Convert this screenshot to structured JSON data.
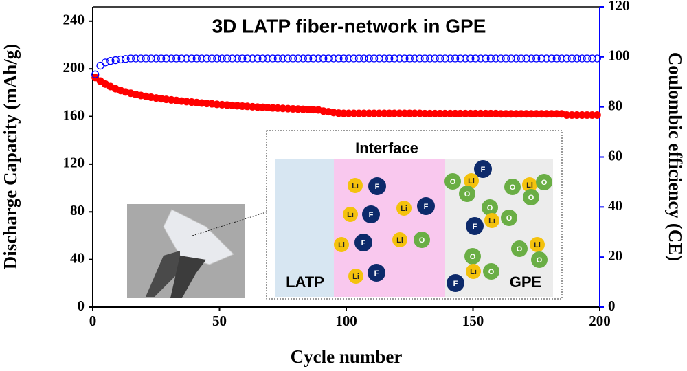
{
  "chart_data": {
    "type": "scatter",
    "title": "3D LATP fiber-network in GPE",
    "x_label": "Cycle number",
    "y_label": "Discharge Capacity (mAh/g)",
    "y2_label": "Coulombic efficiency (CE)",
    "x": [
      1,
      3,
      5,
      7,
      9,
      11,
      13,
      15,
      17,
      19,
      21,
      23,
      25,
      27,
      29,
      31,
      33,
      35,
      37,
      39,
      41,
      43,
      45,
      47,
      49,
      51,
      53,
      55,
      57,
      59,
      61,
      63,
      65,
      67,
      69,
      71,
      73,
      75,
      77,
      79,
      81,
      83,
      85,
      87,
      89,
      91,
      93,
      95,
      97,
      99,
      101,
      103,
      105,
      107,
      109,
      111,
      113,
      115,
      117,
      119,
      121,
      123,
      125,
      127,
      129,
      131,
      133,
      135,
      137,
      139,
      141,
      143,
      145,
      147,
      149,
      151,
      153,
      155,
      157,
      159,
      161,
      163,
      165,
      167,
      169,
      171,
      173,
      175,
      177,
      179,
      181,
      183,
      185,
      187,
      189,
      191,
      193,
      195,
      197,
      199
    ],
    "series": [
      {
        "name": "Discharge Capacity",
        "color": "#ff0000",
        "marker": "filled",
        "axis": "y",
        "values": [
          192.7,
          189.7,
          187.2,
          185.1,
          183.3,
          181.8,
          180.6,
          179.5,
          178.5,
          177.6,
          176.9,
          176.2,
          175.5,
          174.9,
          174.4,
          173.9,
          173.4,
          172.9,
          172.5,
          172.1,
          171.7,
          171.3,
          170.9,
          170.6,
          170.2,
          169.9,
          169.6,
          169.3,
          169.0,
          168.7,
          168.5,
          168.2,
          167.9,
          167.7,
          167.5,
          167.2,
          167.0,
          166.8,
          166.6,
          166.4,
          166.2,
          166.0,
          165.8,
          165.7,
          165.5,
          164.5,
          164.0,
          163.3,
          162.8,
          162.6,
          162.6,
          162.6,
          162.6,
          162.6,
          162.6,
          162.6,
          162.6,
          162.6,
          162.6,
          162.6,
          162.6,
          162.6,
          162.6,
          162.6,
          162.6,
          162.4,
          162.4,
          162.4,
          162.4,
          162.4,
          162.4,
          162.4,
          162.4,
          162.4,
          162.4,
          162.4,
          162.4,
          162.4,
          162.4,
          162.4,
          162.2,
          162.2,
          162.2,
          162.2,
          162.2,
          162.2,
          162.2,
          162.2,
          162.2,
          162.2,
          162.2,
          162.2,
          162.2,
          161.2,
          161.2,
          161.2,
          161.2,
          161.2,
          161.2,
          161.2
        ]
      },
      {
        "name": "Coulombic efficiency",
        "color": "#0000ff",
        "marker": "open",
        "axis": "y2",
        "values": [
          93.0,
          96.5,
          97.8,
          98.4,
          98.7,
          99.0,
          99.2,
          99.4,
          99.4,
          99.4,
          99.4,
          99.4,
          99.4,
          99.4,
          99.4,
          99.4,
          99.4,
          99.4,
          99.4,
          99.4,
          99.4,
          99.4,
          99.4,
          99.4,
          99.4,
          99.4,
          99.4,
          99.4,
          99.4,
          99.4,
          99.4,
          99.4,
          99.4,
          99.4,
          99.4,
          99.4,
          99.4,
          99.4,
          99.4,
          99.4,
          99.4,
          99.4,
          99.4,
          99.4,
          99.4,
          99.4,
          99.4,
          99.4,
          99.4,
          99.4,
          99.4,
          99.4,
          99.4,
          99.4,
          99.4,
          99.4,
          99.4,
          99.4,
          99.4,
          99.4,
          99.4,
          99.4,
          99.4,
          99.4,
          99.4,
          99.4,
          99.4,
          99.4,
          99.4,
          99.4,
          99.4,
          99.4,
          99.4,
          99.4,
          99.4,
          99.4,
          99.4,
          99.4,
          99.4,
          99.4,
          99.4,
          99.4,
          99.4,
          99.4,
          99.4,
          99.4,
          99.4,
          99.4,
          99.4,
          99.4,
          99.4,
          99.4,
          99.4,
          99.4,
          99.4,
          99.4,
          99.4,
          99.4,
          99.4,
          99.4
        ]
      }
    ],
    "xlim": [
      0,
      200
    ],
    "xticks": [
      0,
      50,
      100,
      150,
      200
    ],
    "ylim": [
      0,
      252
    ],
    "yticks": [
      0,
      40,
      80,
      120,
      160,
      200,
      240
    ],
    "y2lim": [
      0,
      120
    ],
    "y2ticks": [
      0,
      20,
      40,
      60,
      80,
      100,
      120
    ],
    "y2_axis_color": "#0000ff",
    "inset": {
      "title": "Interface",
      "labels": [
        "LATP",
        "GPE"
      ],
      "species": [
        "Li",
        "F",
        "O"
      ]
    }
  }
}
